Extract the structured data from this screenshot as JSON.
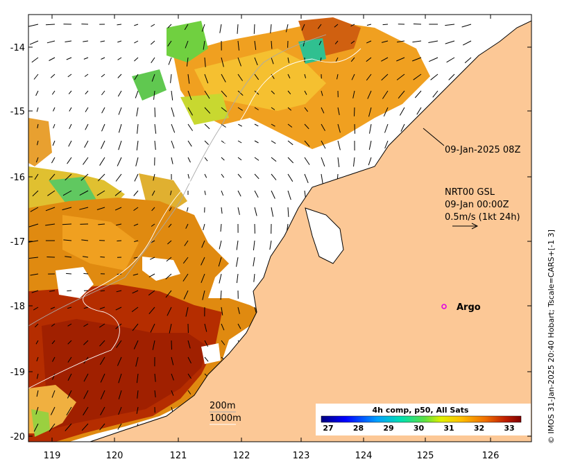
{
  "map": {
    "x_ticks": [
      "119",
      "120",
      "121",
      "122",
      "123",
      "124",
      "125",
      "126"
    ],
    "y_ticks": [
      "-14",
      "-15",
      "-16",
      "-17",
      "-18",
      "-19",
      "-20"
    ],
    "timestamp_label": "09-Jan-2025 08Z",
    "current_info": {
      "line1": "NRT00 GSL",
      "line2": "09-Jan 00:00Z",
      "line3": "0.5m/s (1kt 24h)"
    },
    "argo_label": "Argo",
    "contours": {
      "c200": "200m",
      "c1000": "1000m"
    },
    "side_credit": "© IMOS 31-Jan-2025 20:40 Hobart; Tscale=CARS+[-1 3]",
    "colorbar": {
      "title": "4h comp, p50, All Sats",
      "ticks": [
        "27",
        "28",
        "29",
        "30",
        "31",
        "32",
        "33"
      ]
    },
    "colors": {
      "land": "#fcc896",
      "argo_marker": "#e000e0",
      "colormap": [
        "#00007f",
        "#0000ff",
        "#007fff",
        "#00ffff",
        "#7fff7f",
        "#ffff00",
        "#ff7f00",
        "#ff0000",
        "#7f0000"
      ]
    }
  }
}
